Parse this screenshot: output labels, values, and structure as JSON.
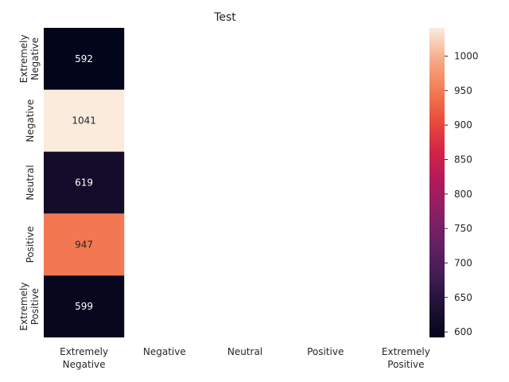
{
  "chart_data": {
    "type": "heatmap",
    "title": "Test",
    "x_categories": [
      [
        "Extremely",
        "Negative"
      ],
      [
        "Negative"
      ],
      [
        "Neutral"
      ],
      [
        "Positive"
      ],
      [
        "Extremely",
        "Positive"
      ]
    ],
    "y_categories": [
      [
        "Extremely",
        "Negative"
      ],
      [
        "Negative"
      ],
      [
        "Neutral"
      ],
      [
        "Positive"
      ],
      [
        "Extremely",
        "Positive"
      ]
    ],
    "cells": [
      {
        "row": 0,
        "col": 0,
        "value": 592
      },
      {
        "row": 1,
        "col": 0,
        "value": 1041
      },
      {
        "row": 2,
        "col": 0,
        "value": 619
      },
      {
        "row": 3,
        "col": 0,
        "value": 947
      },
      {
        "row": 4,
        "col": 0,
        "value": 599
      }
    ],
    "colorbar": {
      "min": 592,
      "max": 1041,
      "ticks": [
        600,
        650,
        700,
        750,
        800,
        850,
        900,
        950,
        1000
      ],
      "colormap": "rocket"
    }
  }
}
